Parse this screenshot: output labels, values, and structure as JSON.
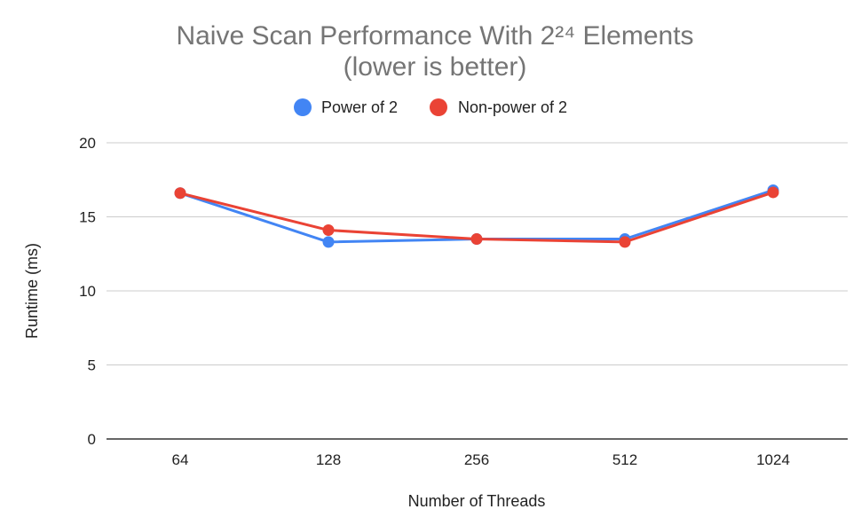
{
  "chart_data": {
    "type": "line",
    "title": "Naive Scan Performance With 2²⁴ Elements",
    "subtitle": "(lower is better)",
    "xlabel": "Number of Threads",
    "ylabel": "Runtime (ms)",
    "categories": [
      "64",
      "128",
      "256",
      "512",
      "1024"
    ],
    "ylim": [
      0,
      20
    ],
    "yticks": [
      "0",
      "5",
      "10",
      "15",
      "20"
    ],
    "grid": true,
    "legend_position": "top",
    "series": [
      {
        "name": "Power of 2",
        "color": "#4285f4",
        "values": [
          16.6,
          13.3,
          13.5,
          13.5,
          16.8
        ]
      },
      {
        "name": "Non-power of 2",
        "color": "#ea4335",
        "values": [
          16.6,
          14.1,
          13.5,
          13.3,
          16.65
        ]
      }
    ]
  }
}
